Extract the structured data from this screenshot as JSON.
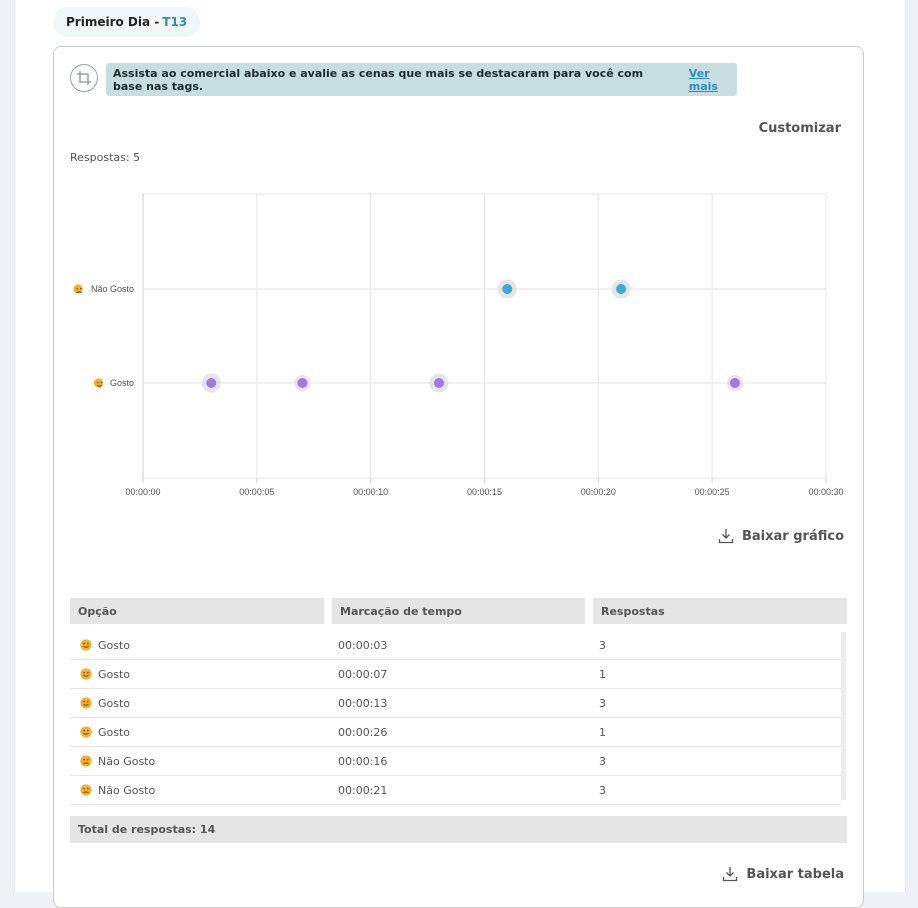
{
  "header": {
    "title_prefix": "Primeiro Dia - ",
    "title_code": "T13"
  },
  "question": {
    "instruction": "Assista ao comercial abaixo e avalie as cenas que mais se destacaram para você com base nas tags.",
    "more_link": "Ver mais",
    "customize": "Customizar",
    "responses_label": "Respostas: 5"
  },
  "colors": {
    "gosto": "#9b7be0",
    "nao_gosto": "#3aaad8",
    "emoji_face": "#f2b12c",
    "accent": "#2a8fc7"
  },
  "chart_data": {
    "type": "scatter",
    "categories": [
      "Gosto",
      "Não Gosto"
    ],
    "x_tick_labels": [
      "00:00:00",
      "00:00:05",
      "00:00:10",
      "00:00:15",
      "00:00:20",
      "00:00:25",
      "00:00:30"
    ],
    "xlim": [
      0,
      30
    ],
    "grid": true,
    "series": [
      {
        "name": "Gosto",
        "points": [
          {
            "x": 3,
            "y": "Gosto",
            "count": 3
          },
          {
            "x": 7,
            "y": "Gosto",
            "count": 1
          },
          {
            "x": 13,
            "y": "Gosto",
            "count": 3
          },
          {
            "x": 26,
            "y": "Gosto",
            "count": 1
          }
        ]
      },
      {
        "name": "Não Gosto",
        "points": [
          {
            "x": 16,
            "y": "Não Gosto",
            "count": 3
          },
          {
            "x": 21,
            "y": "Não Gosto",
            "count": 3
          }
        ]
      }
    ]
  },
  "download_chart": "Baixar gráfico",
  "table": {
    "headers": [
      "Opção",
      "Marcação de tempo",
      "Respostas"
    ],
    "rows": [
      {
        "option": "Gosto",
        "emoji": "smile",
        "time": "00:00:03",
        "count": "3"
      },
      {
        "option": "Gosto",
        "emoji": "smile",
        "time": "00:00:07",
        "count": "1"
      },
      {
        "option": "Gosto",
        "emoji": "smile",
        "time": "00:00:13",
        "count": "3"
      },
      {
        "option": "Gosto",
        "emoji": "smile",
        "time": "00:00:26",
        "count": "1"
      },
      {
        "option": "Não Gosto",
        "emoji": "frown",
        "time": "00:00:16",
        "count": "3"
      },
      {
        "option": "Não Gosto",
        "emoji": "frown",
        "time": "00:00:21",
        "count": "3"
      }
    ],
    "total": "Total de respostas: 14"
  },
  "download_table": "Baixar tabela"
}
